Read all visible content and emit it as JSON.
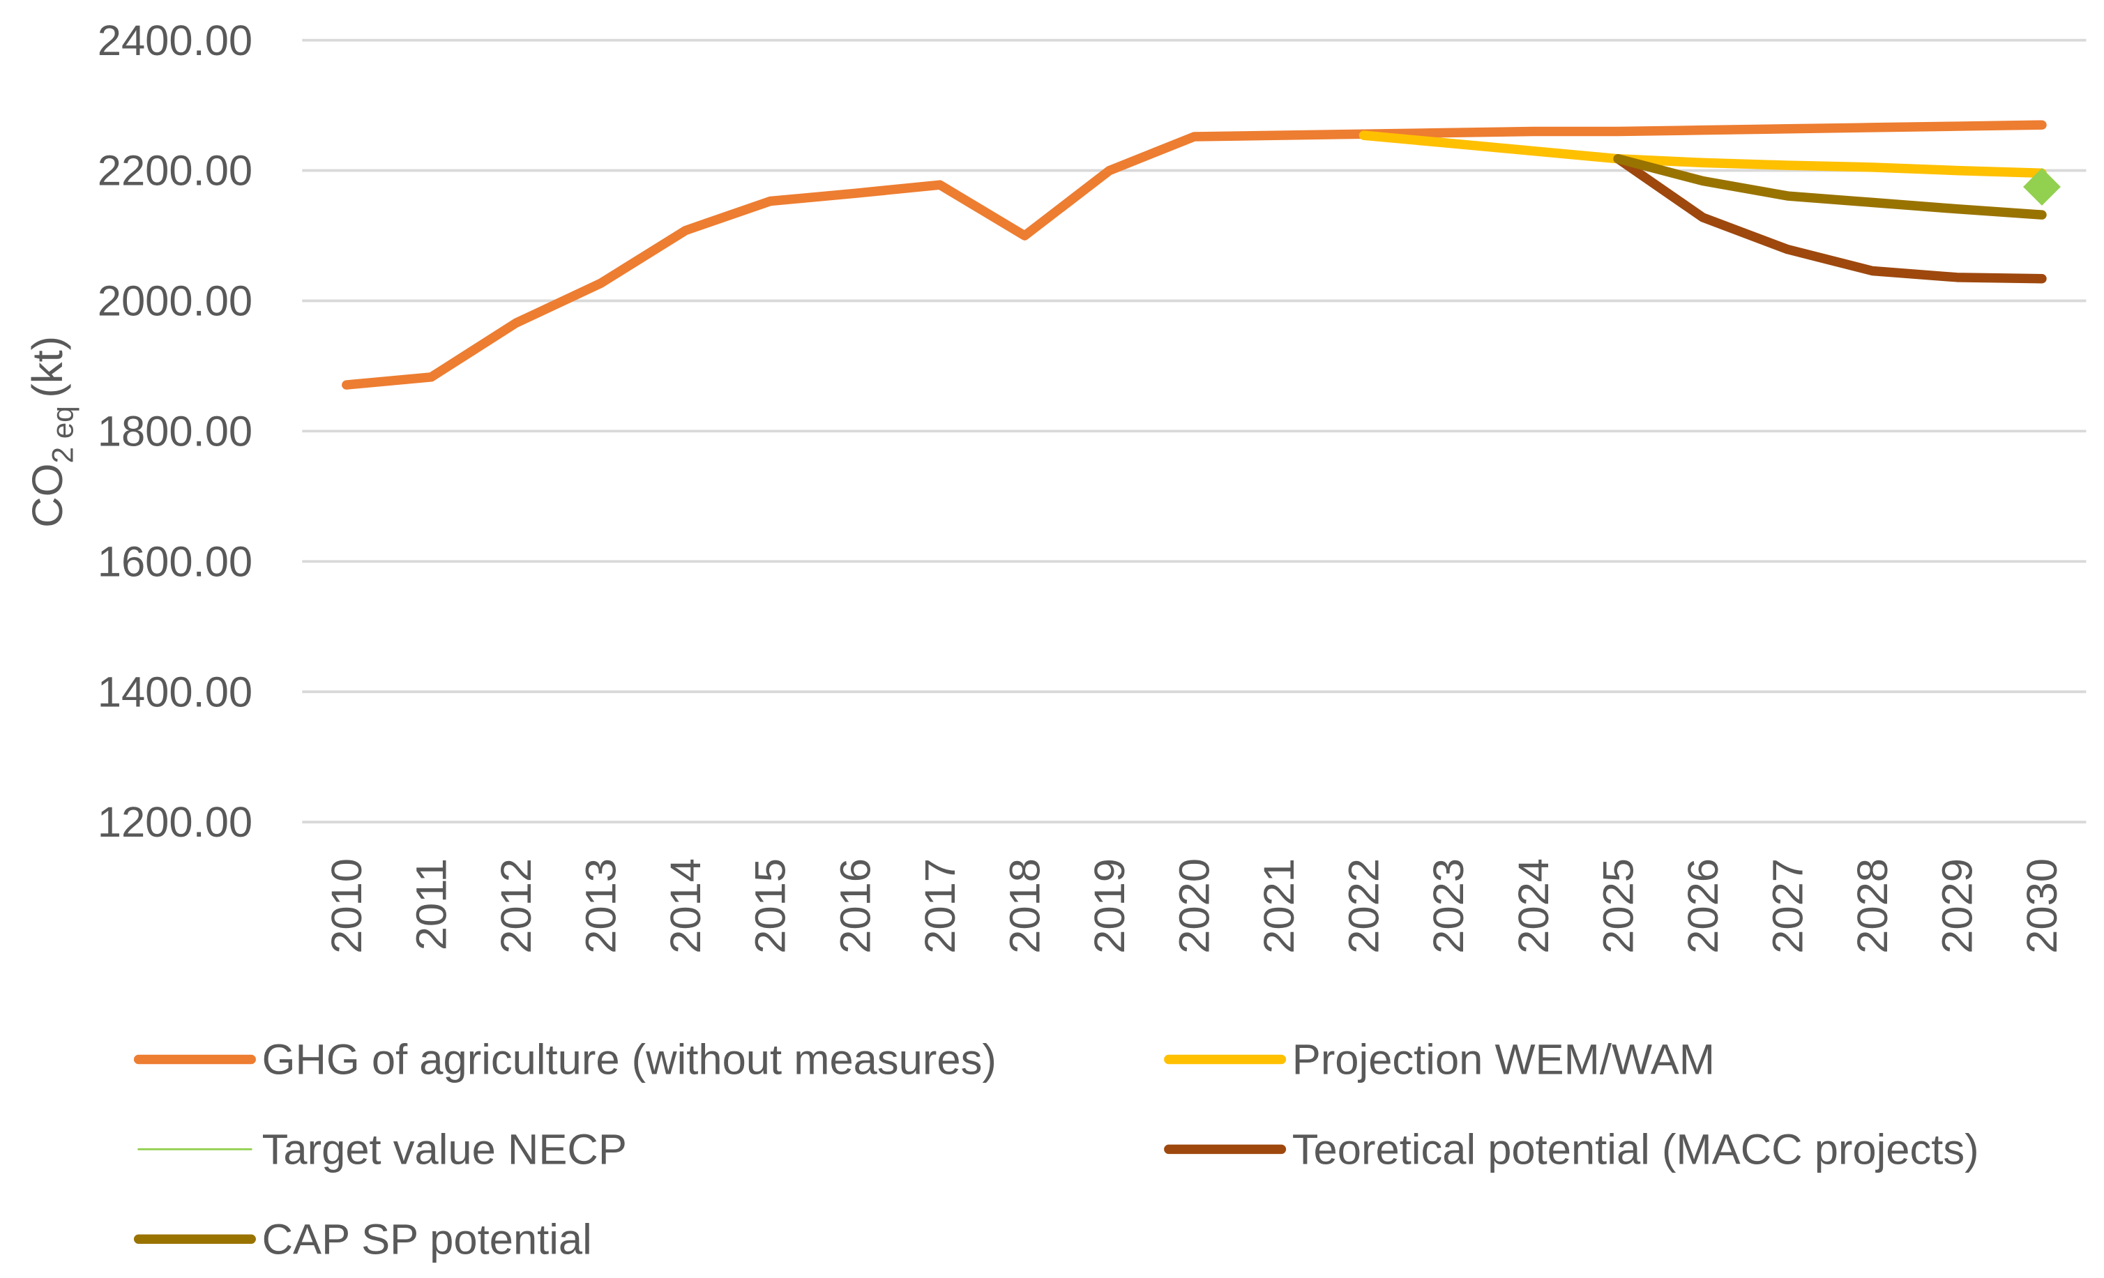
{
  "chart_data": {
    "type": "line",
    "y_label": {
      "main": "CO",
      "sub": "2 eq",
      "unit": "(kt)"
    },
    "categories": [
      "2010",
      "2011",
      "2012",
      "2013",
      "2014",
      "2015",
      "2016",
      "2017",
      "2018",
      "2019",
      "2020",
      "2021",
      "2022",
      "2023",
      "2024",
      "2025",
      "2026",
      "2027",
      "2028",
      "2029",
      "2030"
    ],
    "ylim": [
      1200,
      2400
    ],
    "yticks": [
      {
        "value": 1200,
        "label": "1200.00"
      },
      {
        "value": 1400,
        "label": "1400.00"
      },
      {
        "value": 1600,
        "label": "1600.00"
      },
      {
        "value": 1800,
        "label": "1800.00"
      },
      {
        "value": 2000,
        "label": "2000.00"
      },
      {
        "value": 2200,
        "label": "2200.00"
      },
      {
        "value": 2400,
        "label": "2400.00"
      }
    ],
    "grid": true,
    "legend": "bottom",
    "series": [
      {
        "name": "GHG of agriculture (without measures)",
        "color": "#ED7D31",
        "values": [
          1871,
          1883,
          1966,
          2027,
          2108,
          2153,
          2165,
          2178,
          2100,
          2200,
          2252,
          2254,
          2256,
          2258,
          2260,
          2260,
          2262,
          2264,
          2266,
          2268,
          2270
        ]
      },
      {
        "name": "Projection WEM/WAM",
        "color": "#FFC000",
        "values": [
          null,
          null,
          null,
          null,
          null,
          null,
          null,
          null,
          null,
          null,
          null,
          null,
          2254,
          2242,
          2230,
          2218,
          2212,
          2208,
          2205,
          2200,
          2196
        ]
      },
      {
        "name": "Target value NECP",
        "color": "#92D050",
        "marker": "diamond",
        "values": [
          null,
          null,
          null,
          null,
          null,
          null,
          null,
          null,
          null,
          null,
          null,
          null,
          null,
          null,
          null,
          null,
          null,
          null,
          null,
          null,
          2175
        ]
      },
      {
        "name": "Teoretical potential (MACC projects)",
        "color": "#9E480E",
        "values": [
          null,
          null,
          null,
          null,
          null,
          null,
          null,
          null,
          null,
          null,
          null,
          null,
          null,
          null,
          null,
          2218,
          2128,
          2079,
          2046,
          2036,
          2034
        ]
      },
      {
        "name": "CAP SP potential",
        "color": "#997300",
        "values": [
          null,
          null,
          null,
          null,
          null,
          null,
          null,
          null,
          null,
          null,
          null,
          null,
          null,
          null,
          null,
          2218,
          2184,
          2161,
          2151,
          2141,
          2132
        ]
      }
    ]
  }
}
